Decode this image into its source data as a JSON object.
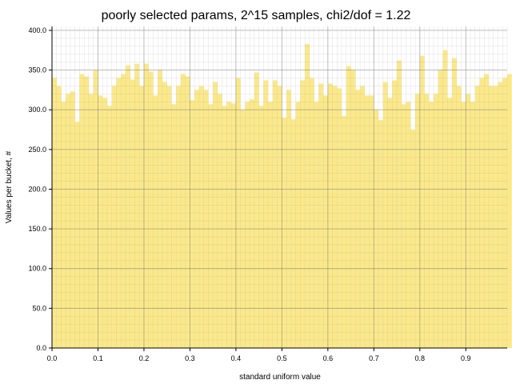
{
  "chart_data": {
    "type": "bar",
    "title": "poorly selected params, 2^15 samples, chi2/dof = 1.22",
    "xlabel": "standard uniform value",
    "ylabel": "Values per bucket, #",
    "xlim": [
      0.0,
      0.99
    ],
    "ylim": [
      0.0,
      405.0
    ],
    "x_ticks": [
      "0.0",
      "0.1",
      "0.2",
      "0.3",
      "0.4",
      "0.5",
      "0.6",
      "0.7",
      "0.8",
      "0.9"
    ],
    "y_ticks": [
      "0.0",
      "50.0",
      "100.0",
      "150.0",
      "200.0",
      "250.0",
      "300.0",
      "350.0",
      "400.0"
    ],
    "grid": true,
    "bin_width": 0.01,
    "values": [
      340,
      330,
      310,
      320,
      323,
      285,
      345,
      342,
      320,
      350,
      318,
      315,
      305,
      330,
      340,
      345,
      356,
      338,
      358,
      330,
      358,
      348,
      318,
      350,
      335,
      330,
      307,
      330,
      345,
      342,
      312,
      325,
      330,
      325,
      307,
      335,
      320,
      305,
      310,
      308,
      340,
      300,
      310,
      313,
      347,
      305,
      337,
      310,
      337,
      330,
      290,
      325,
      288,
      310,
      337,
      383,
      340,
      310,
      333,
      318,
      333,
      330,
      327,
      292,
      355,
      350,
      325,
      330,
      318,
      318,
      300,
      287,
      335,
      315,
      337,
      362,
      307,
      310,
      275,
      320,
      368,
      320,
      310,
      320,
      350,
      375,
      315,
      365,
      330,
      310,
      320,
      310,
      330,
      340,
      345,
      330,
      330,
      335,
      340,
      345
    ],
    "bar_color": "#fbe989",
    "bar_edge_color": "#f3d560"
  }
}
